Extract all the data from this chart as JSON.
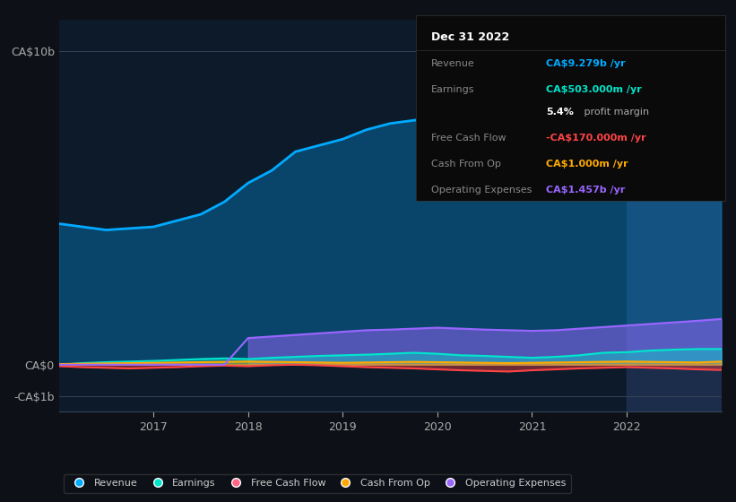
{
  "background_color": "#0d1117",
  "chart_bg_color": "#0d1a2a",
  "years": [
    2016.0,
    2016.25,
    2016.5,
    2016.75,
    2017.0,
    2017.25,
    2017.5,
    2017.75,
    2018.0,
    2018.25,
    2018.5,
    2018.75,
    2019.0,
    2019.25,
    2019.5,
    2019.75,
    2020.0,
    2020.25,
    2020.5,
    2020.75,
    2021.0,
    2021.25,
    2021.5,
    2021.75,
    2022.0,
    2022.25,
    2022.5,
    2022.75,
    2023.0
  ],
  "revenue": [
    4.5,
    4.4,
    4.3,
    4.35,
    4.4,
    4.6,
    4.8,
    5.2,
    5.8,
    6.2,
    6.8,
    7.0,
    7.2,
    7.5,
    7.7,
    7.8,
    7.9,
    7.6,
    7.3,
    7.0,
    6.8,
    7.2,
    7.8,
    8.2,
    8.6,
    9.0,
    9.5,
    10.0,
    10.5
  ],
  "earnings": [
    0.0,
    0.05,
    0.08,
    0.1,
    0.12,
    0.15,
    0.18,
    0.2,
    0.18,
    0.22,
    0.25,
    0.28,
    0.3,
    0.32,
    0.35,
    0.38,
    0.35,
    0.3,
    0.28,
    0.25,
    0.22,
    0.25,
    0.3,
    0.38,
    0.4,
    0.45,
    0.48,
    0.5,
    0.5
  ],
  "free_cash_flow": [
    -0.05,
    -0.08,
    -0.1,
    -0.12,
    -0.1,
    -0.08,
    -0.05,
    -0.03,
    -0.05,
    -0.02,
    0.0,
    -0.02,
    -0.05,
    -0.08,
    -0.1,
    -0.12,
    -0.15,
    -0.18,
    -0.2,
    -0.22,
    -0.18,
    -0.15,
    -0.12,
    -0.1,
    -0.08,
    -0.1,
    -0.12,
    -0.15,
    -0.17
  ],
  "cash_from_op": [
    0.02,
    0.03,
    0.04,
    0.05,
    0.06,
    0.07,
    0.08,
    0.09,
    0.1,
    0.09,
    0.08,
    0.07,
    0.06,
    0.07,
    0.08,
    0.09,
    0.08,
    0.07,
    0.06,
    0.05,
    0.06,
    0.07,
    0.08,
    0.09,
    0.1,
    0.09,
    0.08,
    0.07,
    0.1
  ],
  "op_expenses": [
    0.0,
    0.0,
    0.0,
    0.0,
    0.0,
    0.0,
    0.0,
    0.0,
    0.85,
    0.9,
    0.95,
    1.0,
    1.05,
    1.1,
    1.12,
    1.15,
    1.18,
    1.15,
    1.12,
    1.1,
    1.08,
    1.1,
    1.15,
    1.2,
    1.25,
    1.3,
    1.35,
    1.4,
    1.46
  ],
  "revenue_color": "#00aaff",
  "earnings_color": "#00e5cc",
  "fcf_color": "#ff4444",
  "cashop_color": "#ffaa00",
  "opex_color": "#9966ff",
  "highlight_x_start": 2022.0,
  "ylim_min": -1.5,
  "ylim_max": 11.0,
  "yticks": [
    -1.0,
    0.0,
    10.0
  ],
  "ytick_labels": [
    "-CA$1b",
    "CA$0",
    "CA$10b"
  ],
  "xticks": [
    2017.0,
    2018.0,
    2019.0,
    2020.0,
    2021.0,
    2022.0
  ],
  "legend_items": [
    {
      "label": "Revenue",
      "color": "#00aaff"
    },
    {
      "label": "Earnings",
      "color": "#00e5cc"
    },
    {
      "label": "Free Cash Flow",
      "color": "#ff6688"
    },
    {
      "label": "Cash From Op",
      "color": "#ffaa00"
    },
    {
      "label": "Operating Expenses",
      "color": "#9966ff"
    }
  ]
}
